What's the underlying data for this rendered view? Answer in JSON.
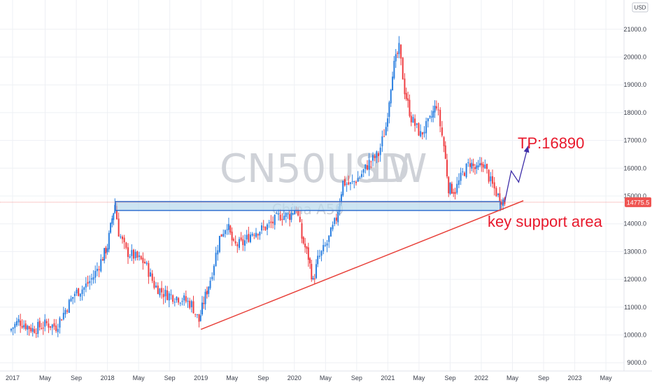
{
  "chart_data": {
    "type": "candlestick",
    "symbol": "CN50USD",
    "timeframe": "1W",
    "subtitle": "China A50",
    "currency": "USD",
    "last_price": "14775.5",
    "y_ticks": [
      "9000.0",
      "10000.0",
      "11000.0",
      "12000.0",
      "13000.0",
      "14000.0",
      "15000.0",
      "16000.0",
      "17000.0",
      "18000.0",
      "19000.0",
      "20000.0",
      "21000.0"
    ],
    "x_ticks": [
      "2017",
      "May",
      "Sep",
      "2018",
      "May",
      "Sep",
      "2019",
      "May",
      "Sep",
      "2020",
      "May",
      "Sep",
      "2021",
      "May",
      "Sep",
      "2022",
      "May",
      "Sep",
      "2023",
      "May"
    ],
    "ylim": [
      8700,
      21300
    ],
    "grid": true,
    "path_points": [
      [
        2016.95,
        10150
      ],
      [
        2017.05,
        10500
      ],
      [
        2017.2,
        10200
      ],
      [
        2017.35,
        10400
      ],
      [
        2017.45,
        10300
      ],
      [
        2017.55,
        10900
      ],
      [
        2017.65,
        11500
      ],
      [
        2017.75,
        11700
      ],
      [
        2017.85,
        12100
      ],
      [
        2017.95,
        12800
      ],
      [
        2018.0,
        13200
      ],
      [
        2018.05,
        14200
      ],
      [
        2018.08,
        14700
      ],
      [
        2018.12,
        13700
      ],
      [
        2018.2,
        13000
      ],
      [
        2018.3,
        12800
      ],
      [
        2018.4,
        12600
      ],
      [
        2018.5,
        11800
      ],
      [
        2018.6,
        11500
      ],
      [
        2018.7,
        11400
      ],
      [
        2018.8,
        11300
      ],
      [
        2018.9,
        11100
      ],
      [
        2018.98,
        10500
      ],
      [
        2019.03,
        11200
      ],
      [
        2019.1,
        12000
      ],
      [
        2019.2,
        13500
      ],
      [
        2019.28,
        14000
      ],
      [
        2019.35,
        13200
      ],
      [
        2019.45,
        13300
      ],
      [
        2019.55,
        13700
      ],
      [
        2019.65,
        13800
      ],
      [
        2019.75,
        14000
      ],
      [
        2019.85,
        14300
      ],
      [
        2019.95,
        14300
      ],
      [
        2020.02,
        14600
      ],
      [
        2020.08,
        13500
      ],
      [
        2020.15,
        12800
      ],
      [
        2020.2,
        11900
      ],
      [
        2020.25,
        12700
      ],
      [
        2020.35,
        13300
      ],
      [
        2020.45,
        14200
      ],
      [
        2020.52,
        15500
      ],
      [
        2020.6,
        15400
      ],
      [
        2020.7,
        15700
      ],
      [
        2020.8,
        16200
      ],
      [
        2020.9,
        16500
      ],
      [
        2020.98,
        17500
      ],
      [
        2021.05,
        19500
      ],
      [
        2021.12,
        20300
      ],
      [
        2021.18,
        18800
      ],
      [
        2021.25,
        17800
      ],
      [
        2021.35,
        17200
      ],
      [
        2021.45,
        17700
      ],
      [
        2021.52,
        18300
      ],
      [
        2021.6,
        16800
      ],
      [
        2021.65,
        15300
      ],
      [
        2021.72,
        15200
      ],
      [
        2021.8,
        15800
      ],
      [
        2021.88,
        16200
      ],
      [
        2021.95,
        15900
      ],
      [
        2022.02,
        16200
      ],
      [
        2022.1,
        15500
      ],
      [
        2022.18,
        15000
      ],
      [
        2022.25,
        14780
      ]
    ],
    "support_zone": {
      "low": 14480,
      "high": 14800
    },
    "trendline": [
      [
        2019.0,
        10200
      ],
      [
        2022.45,
        14830
      ]
    ],
    "projection": [
      [
        2022.25,
        14780
      ],
      [
        2022.32,
        15900
      ],
      [
        2022.4,
        15500
      ],
      [
        2022.5,
        16800
      ]
    ],
    "annotations": {
      "tp": "TP:16890",
      "support": "key support area"
    },
    "colors": {
      "up": "#2a7fe0",
      "down": "#ef3e42",
      "support_fill": "#b7d8ec",
      "support_stroke": "#2f6fd0",
      "trendline": "#e8413a",
      "projection": "#3e2ea8",
      "annotation": "#e8192c",
      "price_tag": "#ef5350",
      "grid": "#eef0f4",
      "watermark": "#cfd2d8"
    }
  }
}
